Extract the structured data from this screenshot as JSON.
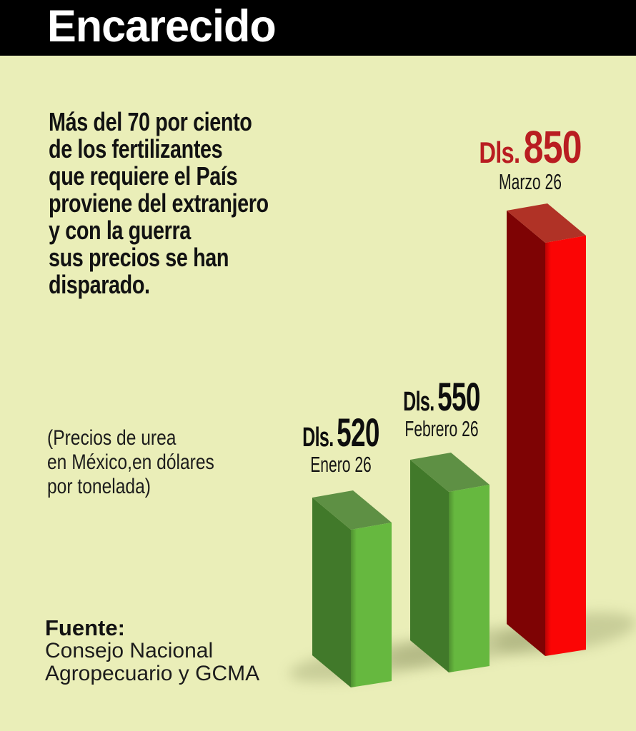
{
  "header": {
    "title": "Encarecido"
  },
  "intro": {
    "text": "Más del 70 por ciento\nde los fertilizantes\nque requiere el País\nproviene del extranjero\ny con la guerra\nsus precios se han\ndisparado."
  },
  "unit_note": {
    "text": "(Precios de urea\nen México,en dólares\npor tonelada)"
  },
  "source": {
    "label": "Fuente:",
    "text": "Consejo Nacional\nAgropecuario y GCMA"
  },
  "chart_data": {
    "type": "bar",
    "style": "3d-column",
    "title": "Encarecido",
    "subtitle": "Más del 70 por ciento de los fertilizantes que requiere el País proviene del extranjero y con la guerra sus precios se han disparado.",
    "unit_label": "(Precios de urea en México, en dólares por tonelada)",
    "categories": [
      "Enero 26",
      "Febrero 26",
      "Marzo 26"
    ],
    "values": [
      520,
      550,
      850
    ],
    "value_prefix": "Dls.",
    "bar_palette": [
      "green",
      "green",
      "red"
    ],
    "legend": "none",
    "grid": false,
    "source": "Consejo Nacional Agropecuario y GCMA"
  },
  "colors": {
    "background": "#eaeeb8",
    "banner": "#000000",
    "title_text": "#ffffff",
    "body_text": "#121212",
    "accent_red": "#b91d21",
    "bar_green_front": "#66b83f",
    "bar_green_front_edge": "#4f9030",
    "bar_green_side": "#41792a",
    "bar_green_top": "#5e9044",
    "bar_red_front": "#fb0505",
    "bar_red_front_edge": "#bb0404",
    "bar_red_side": "#7e0304",
    "bar_red_top": "#b03226",
    "shadow": "#9aa06d"
  }
}
